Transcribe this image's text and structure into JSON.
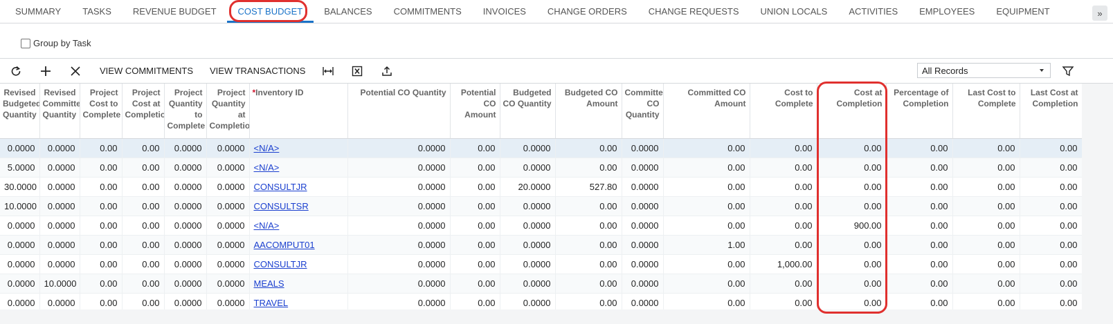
{
  "tabs": [
    "SUMMARY",
    "TASKS",
    "REVENUE BUDGET",
    "COST BUDGET",
    "BALANCES",
    "COMMITMENTS",
    "INVOICES",
    "CHANGE ORDERS",
    "CHANGE REQUESTS",
    "UNION LOCALS",
    "ACTIVITIES",
    "EMPLOYEES",
    "EQUIPMENT"
  ],
  "active_tab": 3,
  "group_by_task": "Group by Task",
  "toolbar": {
    "buttons": [
      "VIEW COMMITMENTS",
      "VIEW TRANSACTIONS"
    ],
    "filter": "All Records"
  },
  "table": {
    "required_mark": "*",
    "columns": [
      "Revised Budgeted Quantity",
      "Revised Committed Quantity",
      "Project Cost to Complete",
      "Project Cost at Completion",
      "Project Quantity to Complete",
      "Project Quantity at Completion",
      "Inventory ID",
      "Potential CO Quantity",
      "Potential CO Amount",
      "Budgeted CO Quantity",
      "Budgeted CO Amount",
      "Committed CO Quantity",
      "Committed CO Amount",
      "Cost to Complete",
      "Cost at Completion",
      "Percentage of Completion",
      "Last Cost to Complete",
      "Last Cost at Completion"
    ],
    "rows": [
      [
        "0.0000",
        "0.0000",
        "0.00",
        "0.00",
        "0.0000",
        "0.0000",
        "<N/A>",
        "0.0000",
        "0.00",
        "0.0000",
        "0.00",
        "0.0000",
        "0.00",
        "0.00",
        "0.00",
        "0.00",
        "0.00",
        "0.00"
      ],
      [
        "5.0000",
        "0.0000",
        "0.00",
        "0.00",
        "0.0000",
        "0.0000",
        "<N/A>",
        "0.0000",
        "0.00",
        "0.0000",
        "0.00",
        "0.0000",
        "0.00",
        "0.00",
        "0.00",
        "0.00",
        "0.00",
        "0.00"
      ],
      [
        "30.0000",
        "0.0000",
        "0.00",
        "0.00",
        "0.0000",
        "0.0000",
        "CONSULTJR",
        "0.0000",
        "0.00",
        "20.0000",
        "527.80",
        "0.0000",
        "0.00",
        "0.00",
        "0.00",
        "0.00",
        "0.00",
        "0.00"
      ],
      [
        "10.0000",
        "0.0000",
        "0.00",
        "0.00",
        "0.0000",
        "0.0000",
        "CONSULTSR",
        "0.0000",
        "0.00",
        "0.0000",
        "0.00",
        "0.0000",
        "0.00",
        "0.00",
        "0.00",
        "0.00",
        "0.00",
        "0.00"
      ],
      [
        "0.0000",
        "0.0000",
        "0.00",
        "0.00",
        "0.0000",
        "0.0000",
        "<N/A>",
        "0.0000",
        "0.00",
        "0.0000",
        "0.00",
        "0.0000",
        "0.00",
        "0.00",
        "900.00",
        "0.00",
        "0.00",
        "0.00"
      ],
      [
        "0.0000",
        "0.0000",
        "0.00",
        "0.00",
        "0.0000",
        "0.0000",
        "AACOMPUT01",
        "0.0000",
        "0.00",
        "0.0000",
        "0.00",
        "0.0000",
        "1.00",
        "0.00",
        "0.00",
        "0.00",
        "0.00",
        "0.00"
      ],
      [
        "0.0000",
        "0.0000",
        "0.00",
        "0.00",
        "0.0000",
        "0.0000",
        "CONSULTJR",
        "0.0000",
        "0.00",
        "0.0000",
        "0.00",
        "0.0000",
        "0.00",
        "1,000.00",
        "0.00",
        "0.00",
        "0.00",
        "0.00"
      ],
      [
        "0.0000",
        "10.0000",
        "0.00",
        "0.00",
        "0.0000",
        "0.0000",
        "MEALS",
        "0.0000",
        "0.00",
        "0.0000",
        "0.00",
        "0.0000",
        "0.00",
        "0.00",
        "0.00",
        "0.00",
        "0.00",
        "0.00"
      ],
      [
        "0.0000",
        "0.0000",
        "0.00",
        "0.00",
        "0.0000",
        "0.0000",
        "TRAVEL",
        "0.0000",
        "0.00",
        "0.0000",
        "0.00",
        "0.0000",
        "0.00",
        "0.00",
        "0.00",
        "0.00",
        "0.00",
        "0.00"
      ]
    ]
  }
}
